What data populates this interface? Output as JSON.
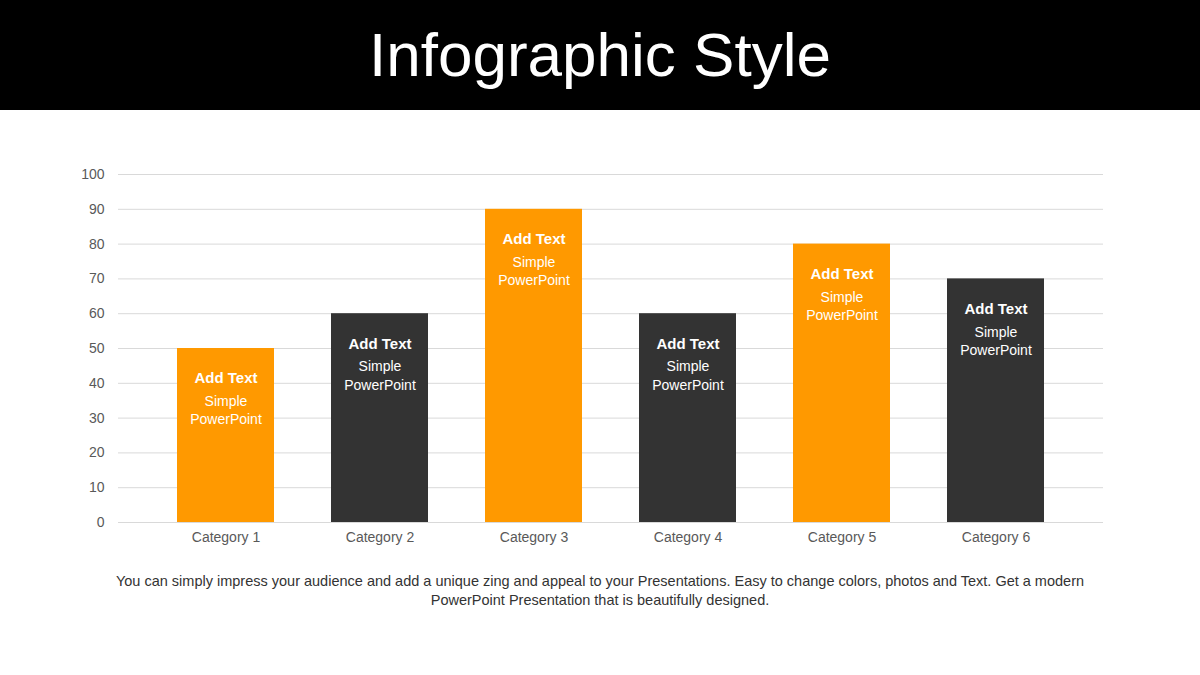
{
  "chart_data": {
    "type": "bar",
    "title": "Infographic Style",
    "categories": [
      "Category 1",
      "Category 2",
      "Category 3",
      "Category 4",
      "Category 5",
      "Category 6"
    ],
    "values": [
      50,
      60,
      90,
      60,
      80,
      70
    ],
    "colors": [
      "#ff9900",
      "#333333",
      "#ff9900",
      "#333333",
      "#ff9900",
      "#333333"
    ],
    "ylim": [
      0,
      100
    ],
    "yticks": [
      0,
      10,
      20,
      30,
      40,
      50,
      60,
      70,
      80,
      90,
      100
    ],
    "grid": true,
    "annotations": [
      {
        "title": "Add Text",
        "text": "Simple PowerPoint"
      },
      {
        "title": "Add Text",
        "text": "Simple PowerPoint"
      },
      {
        "title": "Add Text",
        "text": "Simple PowerPoint"
      },
      {
        "title": "Add Text",
        "text": "Simple PowerPoint"
      },
      {
        "title": "Add Text",
        "text": "Simple PowerPoint"
      },
      {
        "title": "Add Text",
        "text": "Simple PowerPoint"
      }
    ],
    "caption": "You can simply impress your audience and add a unique zing and appeal to your Presentations. Easy to change colors, photos and Text. Get a modern PowerPoint  Presentation that is beautifully designed."
  }
}
